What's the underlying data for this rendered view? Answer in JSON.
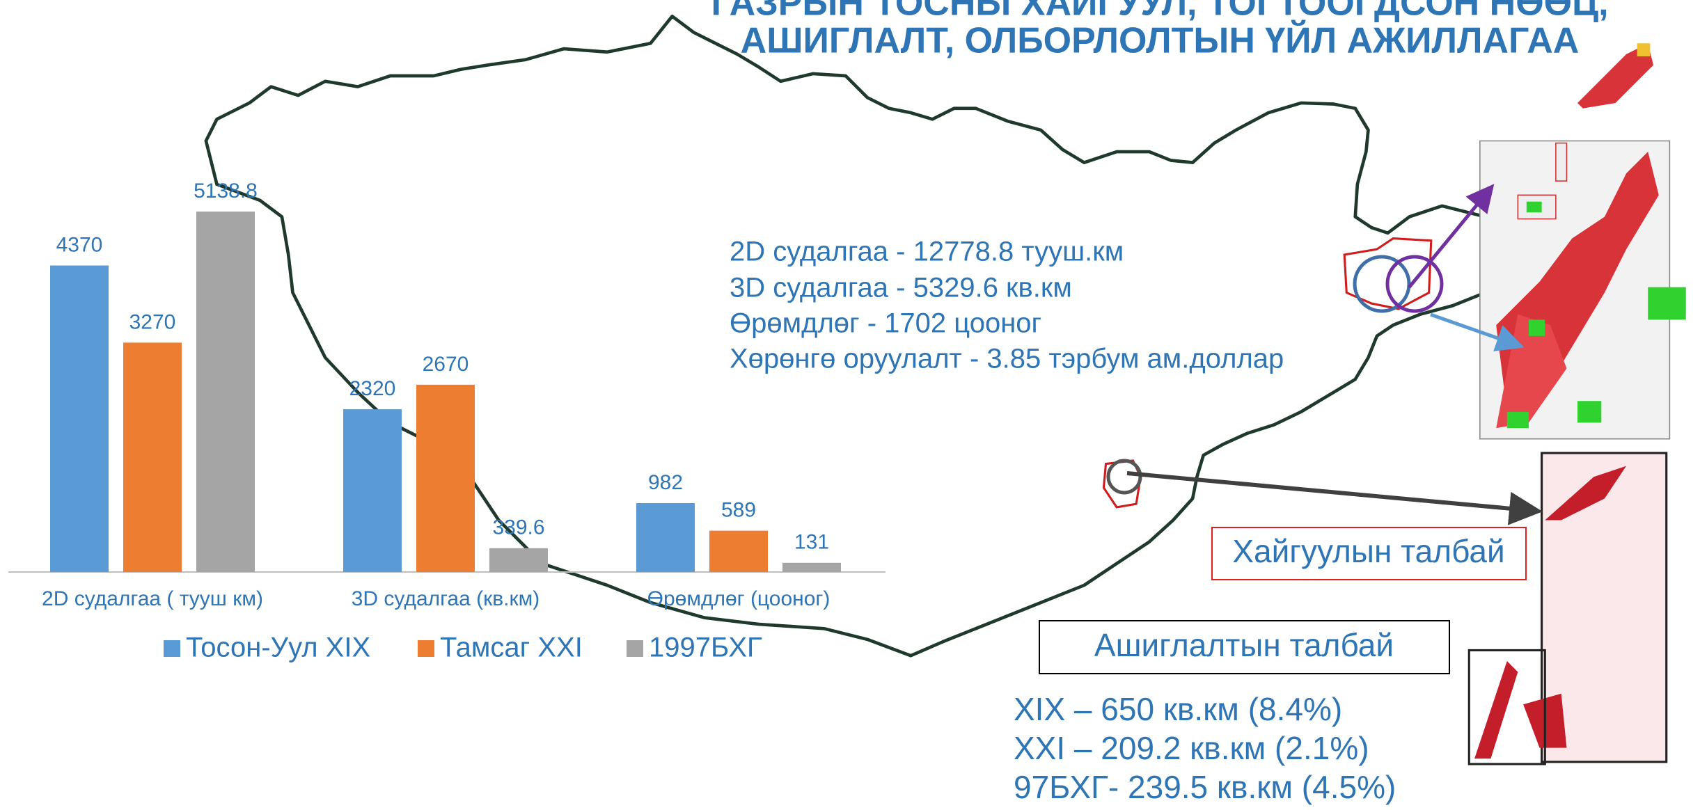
{
  "title": [
    "ГАЗРЫН ТОСНЫ ХАЙГУУЛ, ТОГТООГДСОН НӨӨЦ,",
    "АШИГЛАЛТ, ОЛБОРЛОЛТЫН ҮЙЛ АЖИЛЛАГАА"
  ],
  "info": [
    "2D судалгаа - 12778.8 тууш.км",
    "3D судалгаа - 5329.6 кв.км",
    "Өрөмдлөг - 1702 цооног",
    "Хөрөнгө оруулалт - 3.85 тэрбум ам.доллар"
  ],
  "labels": {
    "exploration": "Хайгуулын талбай",
    "production": "Ашиглалтын талбай"
  },
  "areas": [
    "XIX – 650 кв.км (8.4%)",
    "XXI – 209.2 кв.км (2.1%)",
    "97БХГ- 239.5 кв.км (4.5%)"
  ],
  "chart_data": {
    "type": "bar",
    "categories": [
      "2D судалгаа ( тууш км)",
      "3D судалгаа (кв.км)",
      "Өрөмдлөг (цооног)"
    ],
    "series": [
      {
        "name": "Тосон-Уул XIX",
        "color": "#5b9bd5",
        "values": [
          4370,
          2320,
          982
        ]
      },
      {
        "name": "Тамсаг XXI",
        "color": "#ed7d31",
        "values": [
          3270,
          2670,
          589
        ]
      },
      {
        "name": "1997БХГ",
        "color": "#a5a5a5",
        "values": [
          5138.8,
          339.6,
          131
        ]
      }
    ],
    "legend": "bottom"
  }
}
